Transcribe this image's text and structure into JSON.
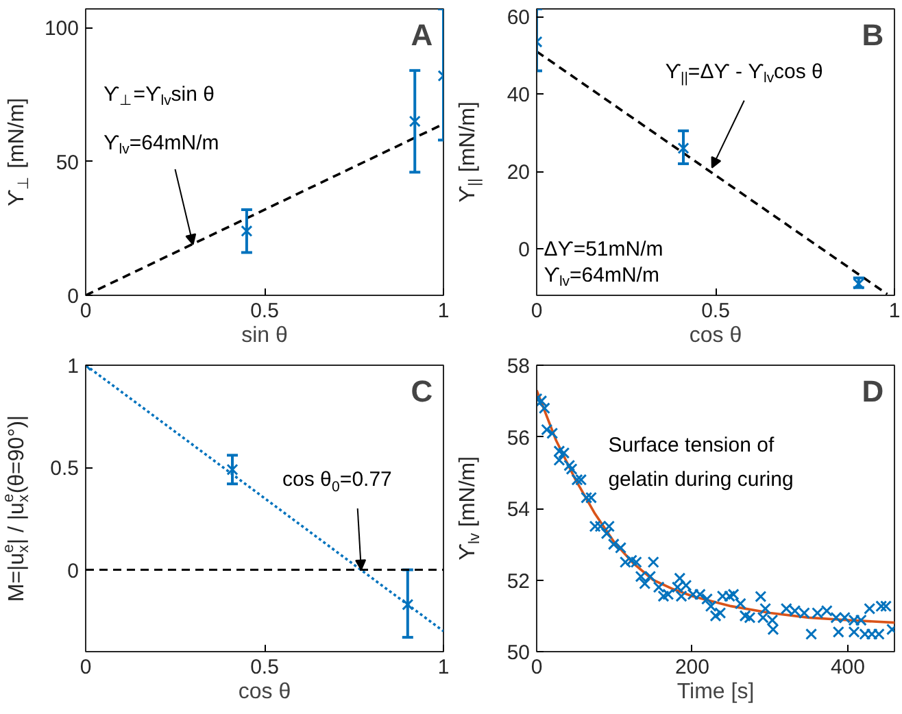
{
  "chart_data": [
    {
      "type": "scatter",
      "title": "A",
      "xlabel": "sin θ",
      "ylabel": "ϒ$_{⊥}$ [mN/m]",
      "xlim": [
        0,
        1
      ],
      "ylim": [
        0,
        107
      ],
      "xticks": [
        0,
        0.5,
        1
      ],
      "yticks": [
        0,
        50,
        100
      ],
      "series": [
        {
          "color": "#0072bd",
          "marker": "cross",
          "x": [
            0.45,
            0.92,
            1.0
          ],
          "values": [
            24,
            65,
            82
          ],
          "errors": [
            [
              16,
              32
            ],
            [
              46,
              84
            ],
            [
              58,
              107
            ]
          ]
        },
        {
          "type": "line",
          "color": "#000000",
          "line_style": "dashed",
          "x": [
            0,
            1
          ],
          "values": [
            0,
            64
          ]
        }
      ],
      "annotations": [
        "ϒ$_{⊥}$=ϒ$_{lv}$sin θ",
        {
          "text": "ϒ$_{lv}$=64mN/m",
          "x": 0.3,
          "y": 19
        }
      ]
    },
    {
      "type": "scatter",
      "title": "B",
      "xlabel": "cos θ",
      "ylabel": "ϒ$_{||}$ [mN/m]",
      "xlim": [
        0,
        1
      ],
      "ylim": [
        -12,
        62
      ],
      "xticks": [
        0,
        0.5,
        1
      ],
      "yticks": [
        0,
        20,
        40,
        60
      ],
      "series": [
        {
          "color": "#0072bd",
          "marker": "cross",
          "x": [
            0,
            0.41,
            0.9
          ],
          "values": [
            53.5,
            26,
            -9
          ],
          "errors": [
            [
              46,
              62
            ],
            [
              22,
              30.5
            ],
            [
              -10,
              -7.5
            ]
          ]
        },
        {
          "type": "line",
          "color": "#000000",
          "line_style": "dashed",
          "x": [
            0,
            0.98
          ],
          "values": [
            51,
            -11.7
          ]
        }
      ],
      "annotations": [
        {
          "text": "ϒ$_{||}$=Δϒ - ϒ$_{lv}$cos θ",
          "x": 0.49,
          "y": 21
        },
        "Δϒ=51mN/m",
        "ϒ$_{lv}$=64mN/m"
      ]
    },
    {
      "type": "scatter",
      "title": "C",
      "xlabel": "cos θ",
      "ylabel": "M=|u$^{e}$$_{x}$| / |u$^{e}$$_{x}$(θ=90°)|",
      "xlim": [
        0,
        1
      ],
      "ylim": [
        -0.4,
        1
      ],
      "xticks": [
        0,
        0.5,
        1
      ],
      "yticks": [
        0,
        0.5,
        1
      ],
      "series": [
        {
          "color": "#0072bd",
          "marker": "cross",
          "x": [
            0,
            0.41,
            0.9
          ],
          "values": [
            1,
            0.49,
            -0.17
          ],
          "errors": [
            null,
            [
              0.42,
              0.56
            ],
            [
              -0.33,
              0
            ]
          ]
        },
        {
          "type": "line",
          "color": "#0072bd",
          "line_style": "dotted",
          "x": [
            0,
            1
          ],
          "values": [
            1,
            -0.3
          ]
        }
      ],
      "ref_lines": [
        {
          "axis": "y",
          "value": 0,
          "color": "#000000",
          "line_style": "dashed"
        }
      ],
      "annotations": [
        {
          "text": "cos θ$_{0}$=0.77",
          "x": 0.77,
          "y": 0
        }
      ]
    },
    {
      "type": "scatter",
      "title": "D",
      "xlabel": "Time [s]",
      "ylabel": "ϒ$_{lv}$ [mN/m]",
      "xlim": [
        0,
        460
      ],
      "ylim": [
        50,
        58
      ],
      "xticks": [
        0,
        200,
        400
      ],
      "yticks": [
        50,
        52,
        54,
        56,
        58
      ],
      "series": [
        {
          "color": "#0072bd",
          "marker": "cross",
          "x": [
            0,
            6,
            10,
            13,
            20,
            29,
            29,
            35,
            42,
            45,
            52,
            57,
            64,
            70,
            75,
            82,
            90,
            93,
            99,
            108,
            114,
            122,
            128,
            134,
            139,
            146,
            150,
            157,
            163,
            169,
            181,
            184,
            186,
            192,
            201,
            210,
            219,
            224,
            230,
            236,
            239,
            248,
            253,
            262,
            268,
            274,
            288,
            291,
            294,
            303,
            304,
            321,
            332,
            344,
            353,
            361,
            373,
            385,
            388,
            396,
            408,
            408,
            417,
            422,
            428,
            431,
            440,
            443,
            449,
            457
          ],
          "values": [
            57.06,
            57.0,
            56.8,
            56.2,
            56.1,
            55.6,
            55.35,
            55.55,
            55.2,
            55.1,
            54.8,
            54.8,
            54.3,
            54.3,
            53.5,
            53.5,
            53.3,
            53.5,
            53.0,
            52.9,
            52.5,
            52.55,
            52.5,
            52.1,
            51.9,
            52.1,
            52.5,
            51.8,
            51.55,
            51.6,
            51.8,
            52.05,
            51.55,
            51.85,
            51.6,
            51.6,
            51.47,
            51.27,
            51.0,
            51.08,
            51.55,
            51.55,
            51.6,
            51.34,
            51.0,
            50.95,
            51.54,
            50.95,
            51.2,
            50.88,
            50.62,
            51.2,
            51.14,
            51.08,
            50.49,
            51.08,
            51.14,
            50.95,
            50.55,
            50.95,
            50.88,
            50.55,
            50.88,
            50.49,
            51.2,
            50.49,
            50.49,
            51.27,
            51.27,
            50.62
          ]
        },
        {
          "type": "line",
          "color": "#d95319",
          "line_style": "solid",
          "x": [
            0,
            25,
            50,
            75,
            100,
            125,
            150,
            175,
            200,
            250,
            300,
            350,
            400,
            460
          ],
          "values": [
            57.3,
            55.9,
            54.8,
            53.85,
            53.05,
            52.45,
            52.0,
            51.75,
            51.55,
            51.27,
            51.08,
            50.95,
            50.88,
            50.81
          ]
        }
      ],
      "annotations": [
        "Surface tension of",
        "gelatin during curing"
      ]
    }
  ]
}
